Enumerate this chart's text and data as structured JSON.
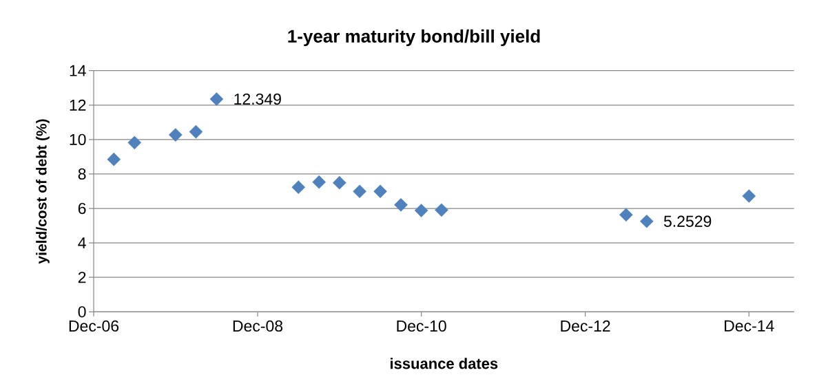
{
  "chart_data": {
    "type": "scatter",
    "title": "1-year maturity bond/bill yield",
    "xlabel": "issuance dates",
    "ylabel": "yield/cost of debt (%)",
    "x": [
      "2007-03",
      "2007-06",
      "2007-12",
      "2008-03",
      "2008-06",
      "2009-06",
      "2009-09",
      "2009-12",
      "2010-03",
      "2010-06",
      "2010-09",
      "2010-12",
      "2011-03",
      "2013-06",
      "2013-09",
      "2014-12"
    ],
    "values": [
      8.85,
      9.82,
      10.27,
      10.45,
      12.349,
      7.23,
      7.53,
      7.49,
      6.99,
      6.99,
      6.21,
      5.88,
      5.91,
      5.63,
      5.2529,
      6.72
    ],
    "value_labels": [
      null,
      null,
      null,
      null,
      "12.349",
      null,
      null,
      null,
      null,
      null,
      null,
      null,
      null,
      null,
      "5.2529",
      null
    ],
    "color": "#4f81bd",
    "marker": "diamond",
    "xlim": [
      "2006-12",
      "2015-06-20"
    ],
    "xticks": [
      {
        "value": "2006-12",
        "label": "Dec-06"
      },
      {
        "value": "2008-12",
        "label": "Dec-08"
      },
      {
        "value": "2010-12",
        "label": "Dec-10"
      },
      {
        "value": "2012-12",
        "label": "Dec-12"
      },
      {
        "value": "2014-12",
        "label": "Dec-14"
      }
    ],
    "ylim": [
      0,
      14
    ],
    "yticks": [
      0,
      2,
      4,
      6,
      8,
      10,
      12,
      14
    ],
    "grid": "y"
  }
}
